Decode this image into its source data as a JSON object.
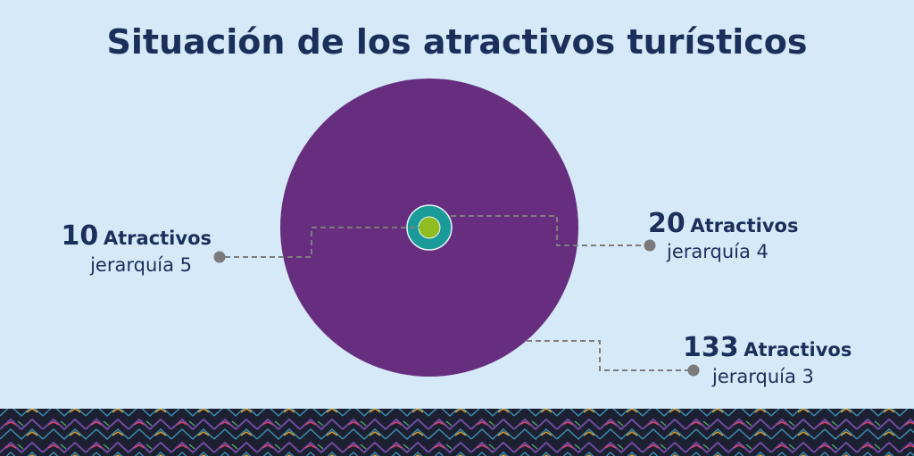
{
  "title": "Situación de los atractivos turísticos",
  "items": [
    {
      "count": 10,
      "unit": "Atractivos",
      "level": "jerarquía 5"
    },
    {
      "count": 20,
      "unit": "Atractivos",
      "level": "jerarquía 4"
    },
    {
      "count": 133,
      "unit": "Atractivos",
      "level": "jerarquía 3"
    }
  ]
}
